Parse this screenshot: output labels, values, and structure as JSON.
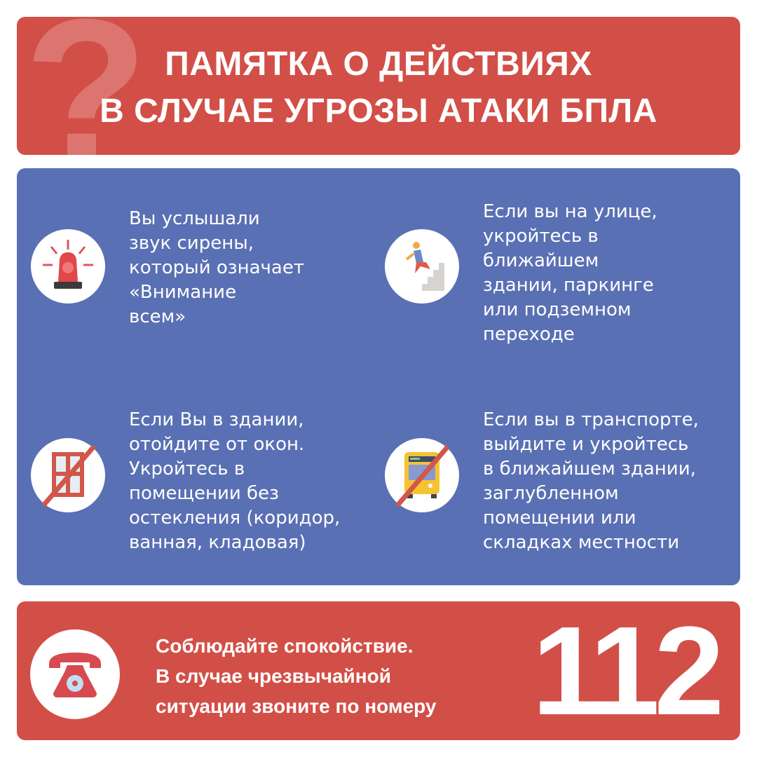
{
  "header": {
    "decor": "?",
    "title_line1": "ПАМЯТКА О ДЕЙСТВИЯХ",
    "title_line2": "В СЛУЧАЕ УГРОЗЫ АТАКИ БПЛА"
  },
  "items": [
    {
      "icon": "siren-icon",
      "text": "Вы услышали\nзвук сирены,\nкоторый означает\n«Внимание\nвсем»"
    },
    {
      "icon": "person-stairs-icon",
      "text": "Если вы на улице,\nукройтесь в\nближайшем\nздании, паркинге\nили подземном\nпереходе"
    },
    {
      "icon": "no-window-icon",
      "text": "Если Вы в здании,\nотойдите от окон.\nУкройтесь в\nпомещении без\nостекления (коридор,\nванная, кладовая)"
    },
    {
      "icon": "no-bus-icon",
      "text": "Если вы в транспорте,\nвыйдите и укройтесь\nв ближайшем здании,\nзаглубленном\nпомещении или\nскладках местности"
    }
  ],
  "footer": {
    "icon": "telephone-icon",
    "text": "Соблюдайте спокойствие.\nВ случае чрезвычайной\nситуации звоните по номеру",
    "number": "112"
  },
  "colors": {
    "red": "#d24f47",
    "blue": "#5a70b4"
  }
}
